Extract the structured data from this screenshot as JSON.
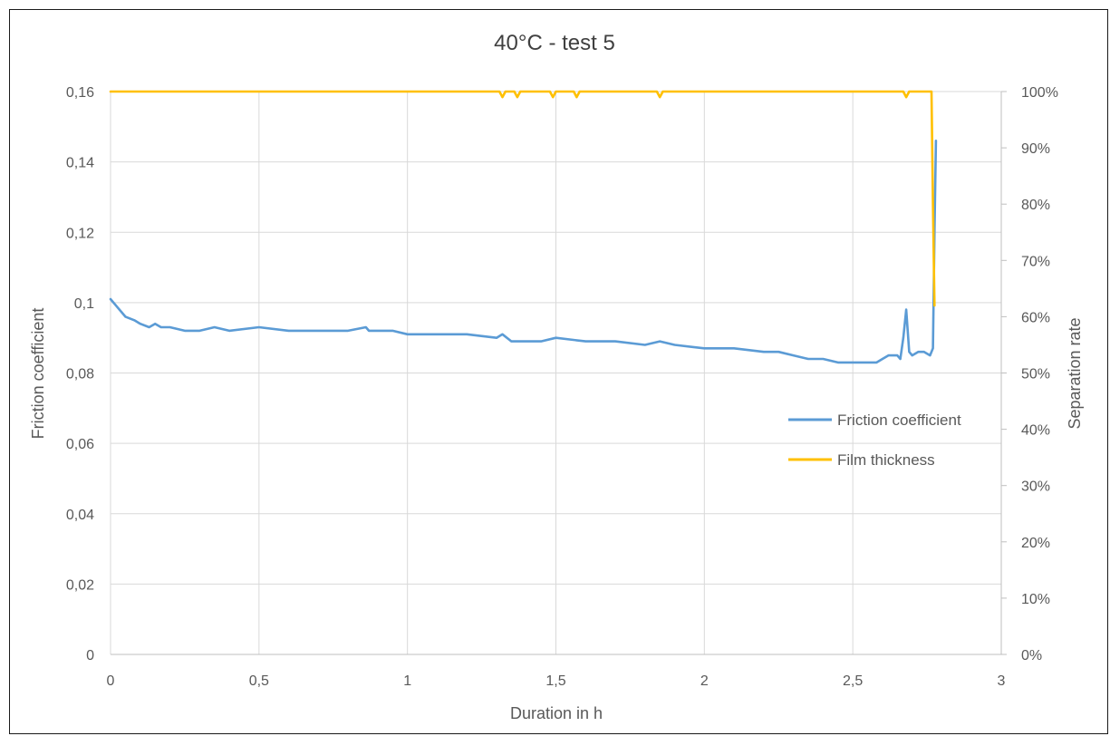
{
  "chart_data": {
    "type": "line",
    "title": "40°C - test 5",
    "xlabel": "Duration in h",
    "ylabel": "Friction coefficient",
    "y2label": "Separation rate",
    "xlim": [
      0,
      3
    ],
    "ylim": [
      0,
      0.16
    ],
    "y2lim": [
      0,
      1
    ],
    "x_ticks": [
      "0",
      "0,5",
      "1",
      "1,5",
      "2",
      "2,5",
      "3"
    ],
    "y_ticks": [
      "0",
      "0,02",
      "0,04",
      "0,06",
      "0,08",
      "0,1",
      "0,12",
      "0,14",
      "0,16"
    ],
    "y2_ticks": [
      "0%",
      "10%",
      "20%",
      "30%",
      "40%",
      "50%",
      "60%",
      "70%",
      "80%",
      "90%",
      "100%"
    ],
    "grid": true,
    "legend_position": "right-middle",
    "series": [
      {
        "name": "Friction coefficient",
        "axis": "left",
        "color": "#5b9bd5",
        "x": [
          0,
          0.02,
          0.05,
          0.08,
          0.1,
          0.13,
          0.15,
          0.17,
          0.2,
          0.25,
          0.3,
          0.35,
          0.4,
          0.5,
          0.6,
          0.7,
          0.8,
          0.86,
          0.87,
          0.9,
          0.95,
          1.0,
          1.05,
          1.1,
          1.2,
          1.3,
          1.32,
          1.35,
          1.4,
          1.45,
          1.5,
          1.6,
          1.7,
          1.8,
          1.85,
          1.9,
          2.0,
          2.1,
          2.2,
          2.25,
          2.3,
          2.35,
          2.4,
          2.45,
          2.5,
          2.55,
          2.58,
          2.6,
          2.62,
          2.65,
          2.66,
          2.67,
          2.68,
          2.69,
          2.7,
          2.72,
          2.74,
          2.76,
          2.77,
          2.775,
          2.78
        ],
        "y": [
          0.101,
          0.099,
          0.096,
          0.095,
          0.094,
          0.093,
          0.094,
          0.093,
          0.093,
          0.092,
          0.092,
          0.093,
          0.092,
          0.093,
          0.092,
          0.092,
          0.092,
          0.093,
          0.092,
          0.092,
          0.092,
          0.091,
          0.091,
          0.091,
          0.091,
          0.09,
          0.091,
          0.089,
          0.089,
          0.089,
          0.09,
          0.089,
          0.089,
          0.088,
          0.089,
          0.088,
          0.087,
          0.087,
          0.086,
          0.086,
          0.085,
          0.084,
          0.084,
          0.083,
          0.083,
          0.083,
          0.083,
          0.084,
          0.085,
          0.085,
          0.084,
          0.09,
          0.098,
          0.086,
          0.085,
          0.086,
          0.086,
          0.085,
          0.087,
          0.12,
          0.146
        ]
      },
      {
        "name": "Film thickness",
        "axis": "right",
        "color": "#ffc000",
        "x": [
          0,
          1.31,
          1.32,
          1.33,
          1.36,
          1.37,
          1.38,
          1.48,
          1.49,
          1.5,
          1.56,
          1.57,
          1.58,
          1.84,
          1.85,
          1.86,
          2.67,
          2.68,
          2.69,
          2.765,
          2.77,
          2.775
        ],
        "y": [
          1.0,
          1.0,
          0.99,
          1.0,
          1.0,
          0.99,
          1.0,
          1.0,
          0.99,
          1.0,
          1.0,
          0.99,
          1.0,
          1.0,
          0.99,
          1.0,
          1.0,
          0.99,
          1.0,
          1.0,
          0.8,
          0.62
        ]
      }
    ]
  }
}
